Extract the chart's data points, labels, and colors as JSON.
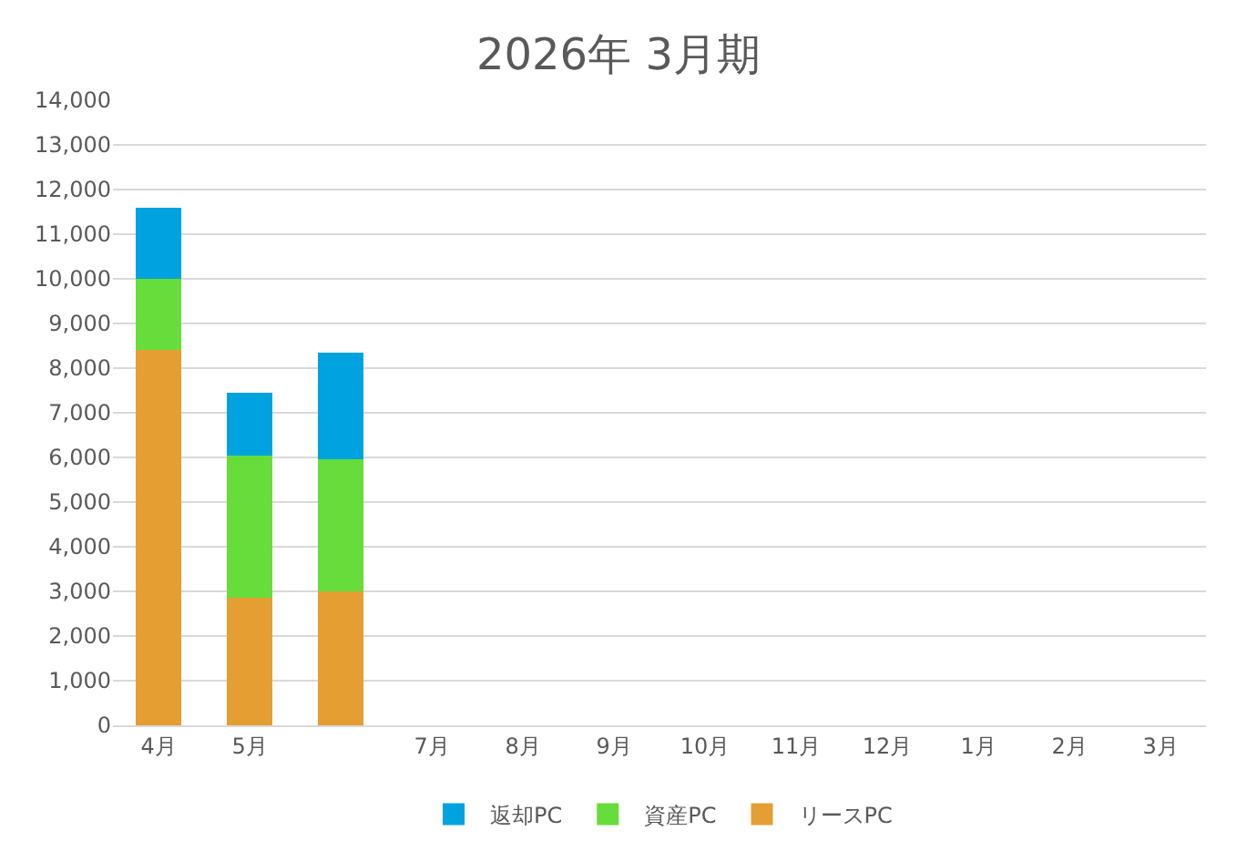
{
  "chart_data": {
    "type": "bar",
    "title": "2026年 3月期",
    "stacked": true,
    "categories": [
      "4月",
      "5月",
      null,
      "7月",
      "8月",
      "9月",
      "10月",
      "11月",
      "12月",
      "1月",
      "2月",
      "3月"
    ],
    "series": [
      {
        "name": "リースPC",
        "color": "#e59e32",
        "values": [
          8400,
          2850,
          3000,
          null,
          null,
          null,
          null,
          null,
          null,
          null,
          null,
          null
        ]
      },
      {
        "name": "資産PC",
        "color": "#66dd3a",
        "values": [
          1600,
          3200,
          2950,
          null,
          null,
          null,
          null,
          null,
          null,
          null,
          null,
          null
        ]
      },
      {
        "name": "返却PC",
        "color": "#00a2e0",
        "values": [
          1600,
          1400,
          2400,
          null,
          null,
          null,
          null,
          null,
          null,
          null,
          null,
          null
        ]
      }
    ],
    "ylim": [
      0,
      14000
    ],
    "yticks": [
      {
        "value": 0,
        "label": "0"
      },
      {
        "value": 1000,
        "label": "1,000"
      },
      {
        "value": 2000,
        "label": "2,000"
      },
      {
        "value": 3000,
        "label": "3,000"
      },
      {
        "value": 4000,
        "label": "4,000"
      },
      {
        "value": 5000,
        "label": "5,000"
      },
      {
        "value": 6000,
        "label": "6,000"
      },
      {
        "value": 7000,
        "label": "7,000"
      },
      {
        "value": 8000,
        "label": "8,000"
      },
      {
        "value": 9000,
        "label": "9,000"
      },
      {
        "value": 10000,
        "label": "10,000"
      },
      {
        "value": 11000,
        "label": "11,000"
      },
      {
        "value": 12000,
        "label": "12,000"
      },
      {
        "value": 13000,
        "label": "13,000"
      },
      {
        "value": 14000,
        "label": "14,000"
      }
    ],
    "grid": "y",
    "legend": "bottom"
  }
}
